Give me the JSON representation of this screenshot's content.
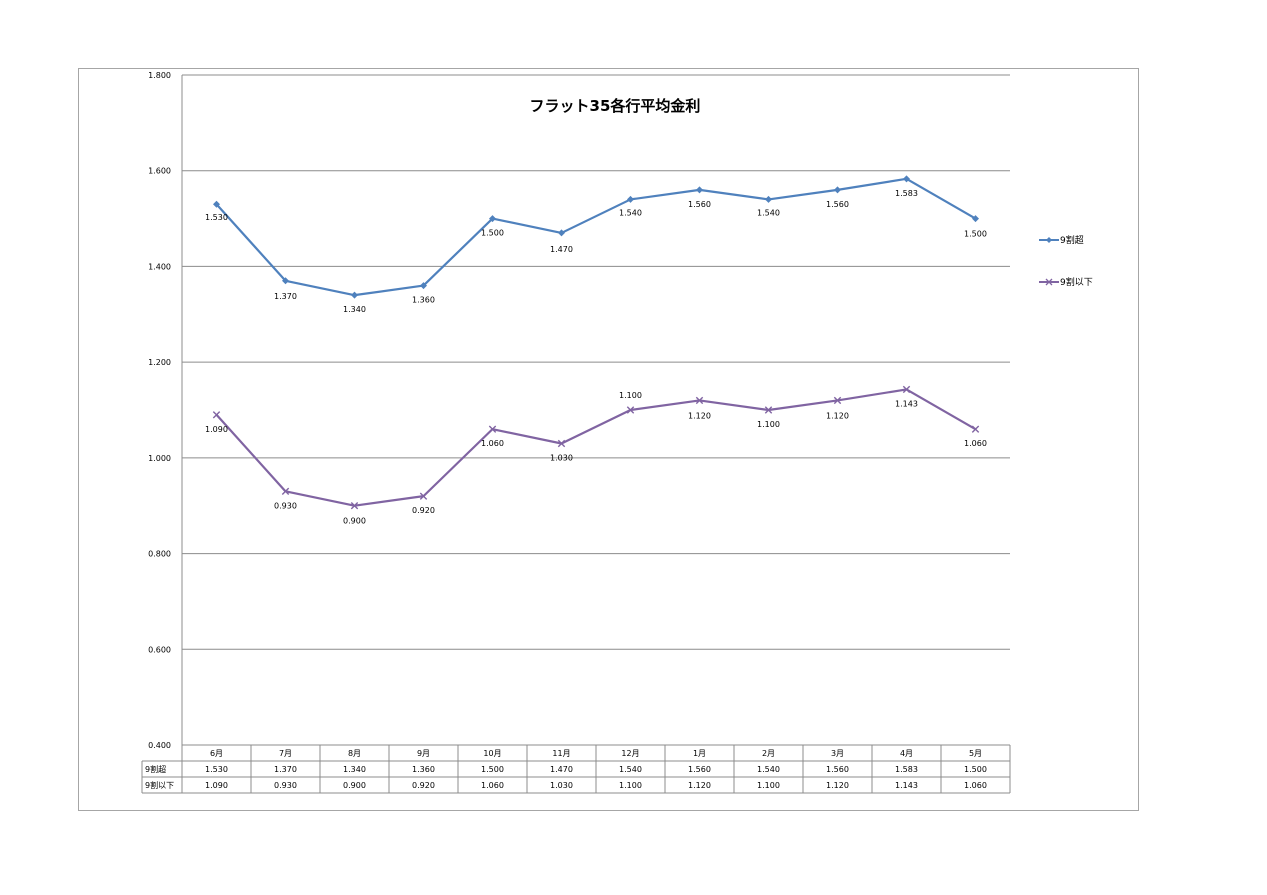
{
  "chart_data": {
    "type": "line",
    "title": "フラット35各行平均金利",
    "xlabel": "",
    "ylabel": "",
    "categories": [
      "6月",
      "7月",
      "8月",
      "9月",
      "10月",
      "11月",
      "12月",
      "1月",
      "2月",
      "3月",
      "4月",
      "5月"
    ],
    "ylim": [
      0.4,
      1.8
    ],
    "yticks": [
      "0.400",
      "0.600",
      "0.800",
      "1.000",
      "1.200",
      "1.400",
      "1.600",
      "1.800"
    ],
    "grid": true,
    "legend_position": "right",
    "series": [
      {
        "name": "9割超",
        "color": "#4f81bd",
        "marker": "diamond",
        "values": [
          1.53,
          1.37,
          1.34,
          1.36,
          1.5,
          1.47,
          1.54,
          1.56,
          1.54,
          1.56,
          1.583,
          1.5
        ],
        "labels": [
          "1.530",
          "1.370",
          "1.340",
          "1.360",
          "1.500",
          "1.470",
          "1.540",
          "1.560",
          "1.540",
          "1.560",
          "1.583",
          "1.500"
        ]
      },
      {
        "name": "9割以下",
        "color": "#8064a2",
        "marker": "x",
        "values": [
          1.09,
          0.93,
          0.9,
          0.92,
          1.06,
          1.03,
          1.1,
          1.12,
          1.1,
          1.12,
          1.143,
          1.06
        ],
        "labels": [
          "1.090",
          "0.930",
          "0.900",
          "0.920",
          "1.060",
          "1.030",
          "1.100",
          "1.120",
          "1.100",
          "1.120",
          "1.143",
          "1.060"
        ]
      }
    ]
  }
}
